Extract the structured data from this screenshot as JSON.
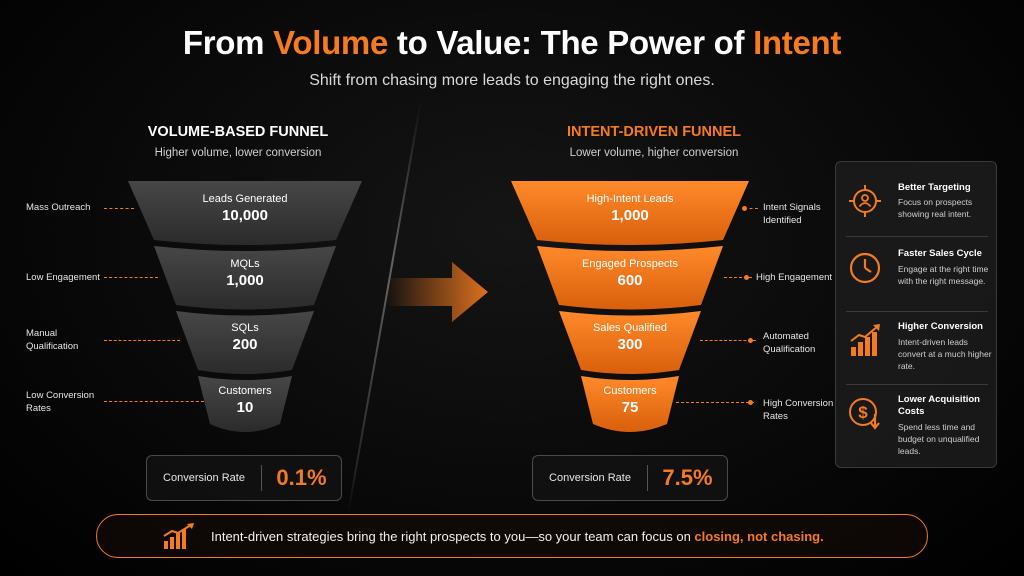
{
  "header": {
    "title_parts": [
      "From ",
      "Volume",
      " to Value: The Power of ",
      "Intent"
    ],
    "subtitle": "Shift from chasing more leads to engaging the right ones."
  },
  "volume_funnel": {
    "title": "VOLUME-BASED FUNNEL",
    "subtitle": "Higher volume, lower conversion",
    "stages": [
      {
        "label": "Leads Generated",
        "value": "10,000"
      },
      {
        "label": "MQLs",
        "value": "1,000"
      },
      {
        "label": "SQLs",
        "value": "200"
      },
      {
        "label": "Customers",
        "value": "10"
      }
    ],
    "side_labels": [
      {
        "line1": "Mass Outreach",
        "line2": ""
      },
      {
        "line1": "Low Engagement",
        "line2": ""
      },
      {
        "line1": "Manual",
        "line2": "Qualification"
      },
      {
        "line1": "Low Conversion",
        "line2": "Rates"
      }
    ],
    "conversion_label": "Conversion Rate",
    "conversion_value": "0.1%",
    "color": "#3a3a3a"
  },
  "intent_funnel": {
    "title": "INTENT-DRIVEN FUNNEL",
    "subtitle": "Lower volume, higher conversion",
    "stages": [
      {
        "label": "High-Intent Leads",
        "value": "1,000"
      },
      {
        "label": "Engaged Prospects",
        "value": "600"
      },
      {
        "label": "Sales Qualified",
        "value": "300"
      },
      {
        "label": "Customers",
        "value": "75"
      }
    ],
    "side_labels": [
      {
        "line1": "Intent Signals",
        "line2": "Identified"
      },
      {
        "line1": "High Engagement",
        "line2": ""
      },
      {
        "line1": "Automated",
        "line2": "Qualification"
      },
      {
        "line1": "High Conversion",
        "line2": "Rates"
      }
    ],
    "conversion_label": "Conversion Rate",
    "conversion_value": "7.5%",
    "color": "#f47b20"
  },
  "benefits": [
    {
      "icon": "target-user-icon",
      "title": "Better Targeting",
      "desc": "Focus on prospects showing real intent."
    },
    {
      "icon": "clock-icon",
      "title": "Faster Sales Cycle",
      "desc": "Engage at the right time with the right message."
    },
    {
      "icon": "growth-chart-icon",
      "title": "Higher Conversion",
      "desc": "Intent-driven leads convert at a much higher rate."
    },
    {
      "icon": "dollar-down-icon",
      "title": "Lower Acquisition Costs",
      "desc": "Spend less time and budget on unqualified leads."
    }
  ],
  "footer": {
    "text": "Intent-driven strategies bring the right prospects to you—so your team can focus on ",
    "highlight": "closing, not chasing."
  },
  "colors": {
    "accent": "#f47b20",
    "background": "#000000",
    "gray_funnel": "#3a3a3a"
  }
}
